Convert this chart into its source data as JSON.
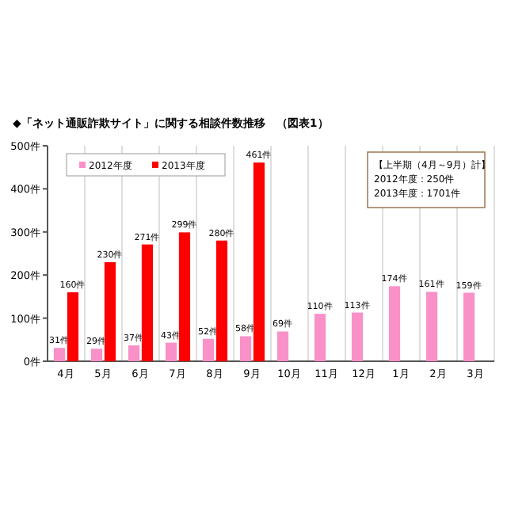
{
  "chart_data": {
    "type": "bar",
    "title": "◆「ネット通販詐欺サイト」に関する相談件数推移　（図表1）",
    "categories": [
      "4月",
      "5月",
      "6月",
      "7月",
      "8月",
      "9月",
      "10月",
      "11月",
      "12月",
      "1月",
      "2月",
      "3月"
    ],
    "series": [
      {
        "name": "2012年度",
        "color": "#f990c8",
        "values": [
          31,
          29,
          37,
          43,
          52,
          58,
          69,
          110,
          113,
          174,
          161,
          159
        ],
        "value_labels": [
          "31件",
          "29件",
          "37件",
          "43件",
          "52件",
          "58件",
          "69件",
          "110件",
          "113件",
          "174件",
          "161件",
          "159件"
        ]
      },
      {
        "name": "2013年度",
        "color": "#ff0000",
        "values": [
          160,
          230,
          271,
          299,
          280,
          461,
          null,
          null,
          null,
          null,
          null,
          null
        ],
        "value_labels": [
          "160件",
          "230件",
          "271件",
          "299件",
          "280件",
          "461件",
          null,
          null,
          null,
          null,
          null,
          null
        ]
      }
    ],
    "ylim": [
      0,
      500
    ],
    "yticks": [
      {
        "value": 0,
        "label": "0件"
      },
      {
        "value": 100,
        "label": "100件"
      },
      {
        "value": 200,
        "label": "200件"
      },
      {
        "value": 300,
        "label": "300件"
      },
      {
        "value": 400,
        "label": "400件"
      },
      {
        "value": 500,
        "label": "500件"
      }
    ],
    "grid": "x",
    "legend": "top left",
    "annotations": [
      "【上半期（4月～9月）計】",
      "2012年度：250件",
      "2013年度：1701件"
    ]
  }
}
